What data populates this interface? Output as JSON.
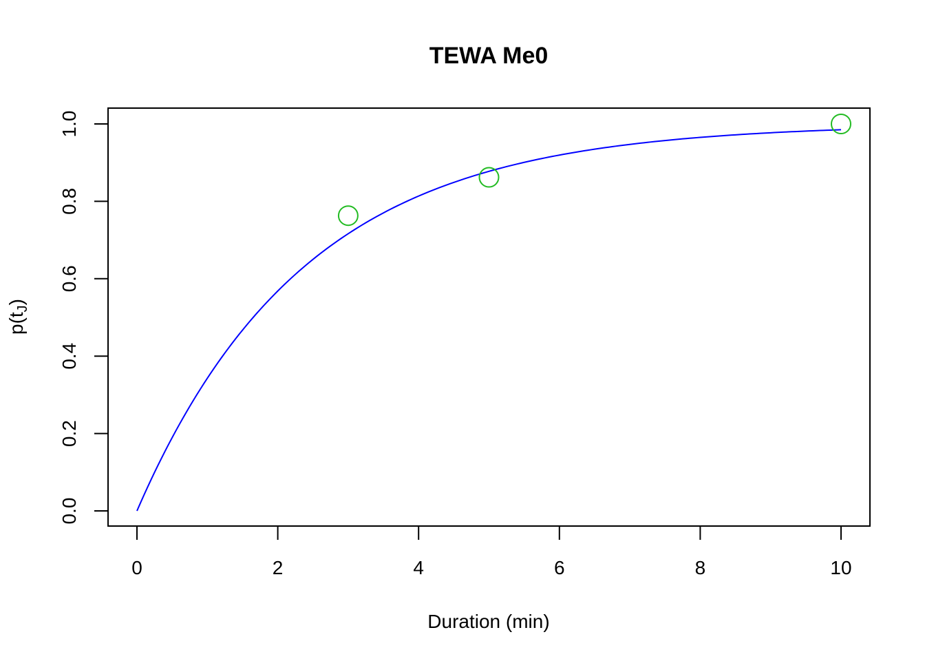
{
  "chart_data": {
    "type": "line",
    "title": "TEWA Me0",
    "xlabel": "Duration (min)",
    "ylabel": {
      "main": "p(t",
      "sub": "J",
      "close": ")"
    },
    "xlim": [
      0,
      10
    ],
    "ylim": [
      0,
      1
    ],
    "x_ticks": [
      0,
      2,
      4,
      6,
      8,
      10
    ],
    "y_ticks": [
      0.0,
      0.2,
      0.4,
      0.6,
      0.8,
      1.0
    ],
    "x_tick_labels": [
      "0",
      "2",
      "4",
      "6",
      "8",
      "10"
    ],
    "y_tick_labels": [
      "0.0",
      "0.2",
      "0.4",
      "0.6",
      "0.8",
      "1.0"
    ],
    "grid": false,
    "series": [
      {
        "kind": "curve",
        "color": "#0000ff",
        "function": "1 - exp(-rate * t)",
        "rate": 0.42
      },
      {
        "kind": "points",
        "color": "#22bb22",
        "marker": "open-circle",
        "x": [
          3,
          5,
          10
        ],
        "y": [
          0.763,
          0.862,
          1.0
        ]
      }
    ]
  }
}
